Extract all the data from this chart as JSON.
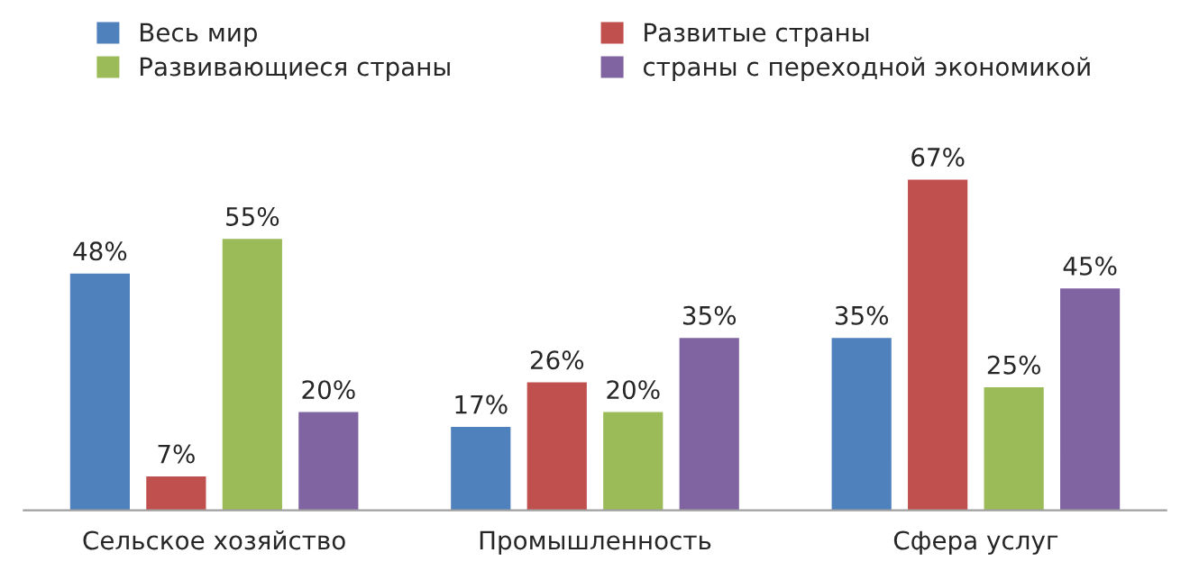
{
  "chart_data": {
    "type": "bar",
    "categories": [
      "Сельское хозяйство",
      "Промышленность",
      "Сфера услуг"
    ],
    "series": [
      {
        "name": "Весь мир",
        "color": "#4f81bd",
        "values": [
          48,
          17,
          35
        ],
        "value_labels": [
          "48%",
          "17%",
          "35%"
        ]
      },
      {
        "name": "Развитые страны",
        "color": "#c0504d",
        "values": [
          7,
          26,
          67
        ],
        "value_labels": [
          "7%",
          "26%",
          "67%"
        ]
      },
      {
        "name": "Развивающиеся страны",
        "color": "#9bbb59",
        "values": [
          55,
          20,
          25
        ],
        "value_labels": [
          "55%",
          "20%",
          "25%"
        ]
      },
      {
        "name": "страны с переходной экономикой",
        "color": "#8064a2",
        "values": [
          20,
          35,
          45
        ],
        "value_labels": [
          "20%",
          "35%",
          "45%"
        ]
      }
    ],
    "legend": "top",
    "grid": false
  }
}
